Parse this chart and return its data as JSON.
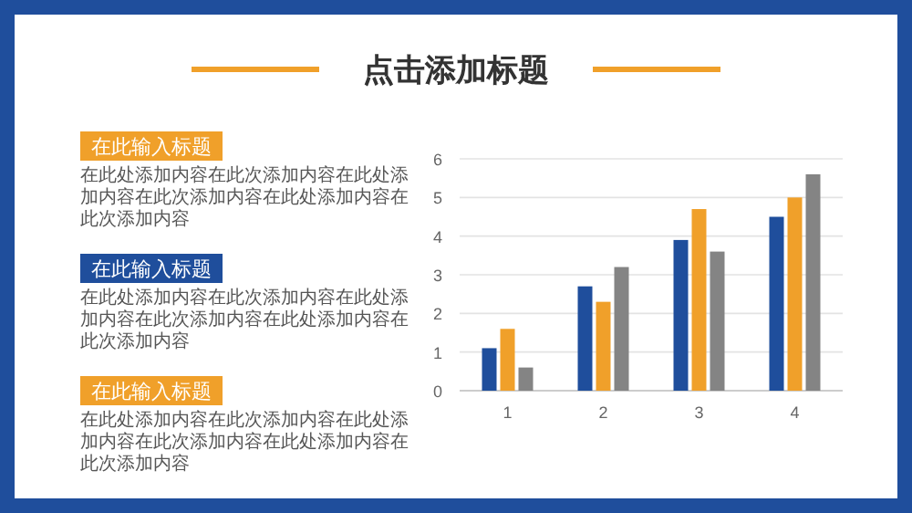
{
  "chart_data": {
    "type": "bar",
    "title": "点击添加标题",
    "categories": [
      "1",
      "2",
      "3",
      "4"
    ],
    "series": [
      {
        "color": "#1f4e9c",
        "values": [
          1.1,
          2.7,
          3.9,
          4.5
        ]
      },
      {
        "color": "#f0a02a",
        "values": [
          1.6,
          2.3,
          4.7,
          5.0
        ]
      },
      {
        "color": "#848484",
        "values": [
          0.6,
          3.2,
          3.6,
          5.6
        ]
      }
    ],
    "ylim": [
      0,
      6
    ],
    "yticks": [
      0,
      1,
      2,
      3,
      4,
      5,
      6
    ],
    "grid": "y",
    "annotations": [
      "在此输入标题",
      "在此处添加内容在此次添加内容在此处添加内容在此次添加内容在此处添加内容在此次添加内容",
      "在此输入标题",
      "在此处添加内容在此次添加内容在此处添加内容在此次添加内容在此处添加内容在此次添加内容",
      "在此输入标题",
      "在此处添加内容在此次添加内容在此处添加内容在此次添加内容在此处添加内容在此次添加内容"
    ]
  }
}
